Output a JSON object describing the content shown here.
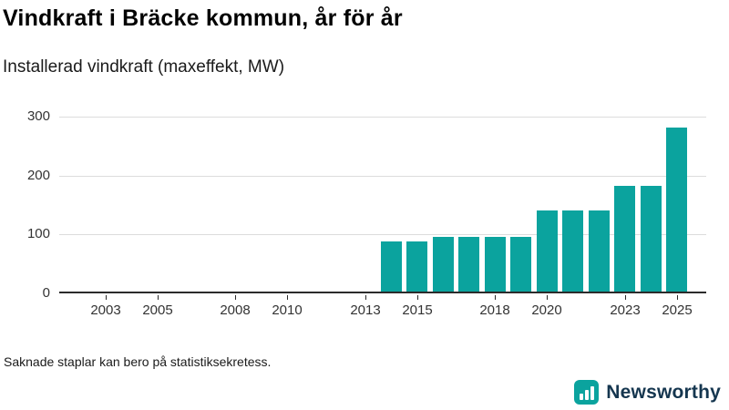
{
  "header": {
    "title": "Vindkraft i Bräcke kommun, år för år",
    "subtitle": "Installerad vindkraft (maxeffekt, MW)"
  },
  "footer": {
    "note": "Saknade staplar kan bero på statistiksekretess.",
    "brand_name": "Newsworthy"
  },
  "colors": {
    "bar": "#0ba39e",
    "grid": "#dcdcdc",
    "axis": "#2b2b2b",
    "brand_teal": "#0ba39e",
    "brand_navy": "#15364f"
  },
  "chart_data": {
    "type": "bar",
    "title": "Vindkraft i Bräcke kommun, år för år",
    "subtitle": "Installerad vindkraft (maxeffekt, MW)",
    "xlabel": "",
    "ylabel": "Installerad vindkraft (maxeffekt, MW)",
    "x": [
      2002,
      2003,
      2004,
      2005,
      2006,
      2007,
      2008,
      2009,
      2010,
      2011,
      2012,
      2013,
      2014,
      2015,
      2016,
      2017,
      2018,
      2019,
      2020,
      2021,
      2022,
      2023,
      2024,
      2025
    ],
    "values": [
      null,
      null,
      null,
      null,
      null,
      null,
      null,
      null,
      null,
      null,
      null,
      null,
      85,
      85,
      93,
      93,
      93,
      93,
      138,
      138,
      138,
      180,
      180,
      278
    ],
    "ylim": [
      0,
      300
    ],
    "yticks": [
      0,
      100,
      200,
      300
    ],
    "xticks": [
      2003,
      2005,
      2008,
      2010,
      2013,
      2015,
      2018,
      2020,
      2023,
      2025
    ],
    "grid": "horizontal",
    "legend": "none",
    "note": "Saknade staplar kan bero på statistiksekretess."
  }
}
